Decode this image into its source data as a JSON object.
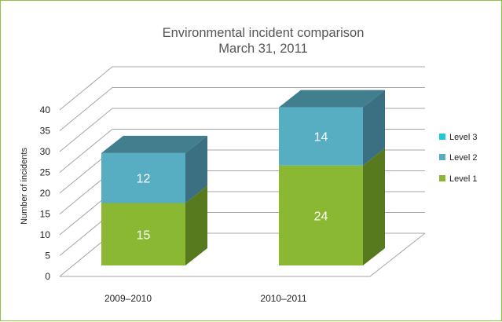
{
  "chart_data": {
    "type": "bar",
    "stacked": true,
    "three_d": true,
    "title": "Environmental incident comparison",
    "subtitle": "March 31, 2011",
    "ylabel": "Number of incidents",
    "xlabel": "",
    "ylim": [
      0,
      40
    ],
    "yticks": [
      "0",
      "5",
      "10",
      "15",
      "20",
      "25",
      "30",
      "35",
      "40"
    ],
    "categories": [
      "2009–2010",
      "2010–2011"
    ],
    "series": [
      {
        "name": "Level 1",
        "values": [
          15,
          24
        ],
        "color": "#8ab832",
        "side_color": "#577a1e",
        "top_color": "#73a02a"
      },
      {
        "name": "Level 2",
        "values": [
          12,
          14
        ],
        "color": "#57aec3",
        "side_color": "#3a7081",
        "top_color": "#417f8e"
      },
      {
        "name": "Level 3",
        "values": [
          0,
          0
        ],
        "color": "#1ec8d6",
        "side_color": "#168c96",
        "top_color": "#189aa5"
      }
    ],
    "legend": {
      "position": "right",
      "order": [
        "Level 3",
        "Level 2",
        "Level 1"
      ]
    },
    "grid": true
  },
  "colors": {
    "border": "#8dc63f",
    "gridline": "#a6a6a6"
  }
}
